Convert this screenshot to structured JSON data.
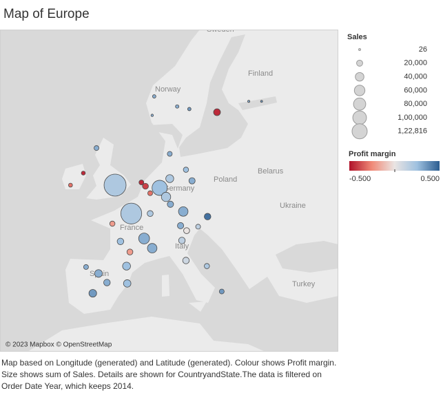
{
  "chart_data": {
    "type": "map",
    "title": "Map of Europe",
    "map_labels": [
      "Sweden",
      "Finland",
      "Norway",
      "Belarus",
      "Poland",
      "Germany",
      "Ukraine",
      "France",
      "Italy",
      "Spain",
      "Turkey"
    ],
    "attribution": "© 2023 Mapbox © OpenStreetMap",
    "caption": "Map based on Longitude (generated) and Latitude (generated). Colour shows  Profit margin. Size shows sum of Sales. Details are shown for CountryandState.The data is filtered on Order Date Year, which keeps 2014.",
    "longitude": [
      -0.2,
      2.2,
      6.4,
      4.1,
      5.3,
      9.9,
      7.35,
      7.9,
      13.5,
      1.5,
      0.6,
      2.0,
      -0.6,
      5.0,
      -2.65,
      -1.4,
      -3.5,
      1.6,
      -4.5,
      9.7,
      10.3,
      15.6,
      10.4,
      3.7,
      4.3,
      5.0,
      14.9,
      -2.95,
      -4.9,
      -6.8,
      11.2,
      7.9,
      9.0,
      10.8,
      5.6,
      10.3,
      13.4,
      8.0,
      12.1,
      9.5,
      19.6,
      21.5,
      5.3
    ],
    "latitude": [
      51.5,
      48.8,
      51.25,
      46.3,
      45.3,
      49.0,
      50.4,
      52.1,
      48.5,
      43.4,
      46.0,
      44.9,
      47.8,
      48.8,
      42.6,
      41.6,
      40.4,
      41.5,
      43.3,
      46.1,
      44.0,
      40.6,
      47.1,
      51.75,
      51.4,
      50.75,
      57.75,
      54.8,
      52.6,
      51.5,
      51.9,
      54.3,
      58.2,
      58.0,
      58.98,
      52.9,
      43.4,
      49.7,
      47.5,
      47.6,
      58.6,
      58.6,
      57.5
    ],
    "sales": [
      122816,
      110000,
      58000,
      30000,
      23000,
      23000,
      22000,
      16000,
      11000,
      16000,
      11000,
      9000,
      7000,
      9000,
      15000,
      11000,
      15000,
      14000,
      6000,
      11000,
      11000,
      6000,
      9000,
      6000,
      9000,
      6000,
      12000,
      6000,
      4000,
      4000,
      10000,
      6000,
      3000,
      3000,
      3000,
      7000,
      7000,
      10000,
      6000,
      10000,
      1200,
      800,
      1500
    ],
    "profit_margin": [
      0.2,
      0.2,
      0.25,
      0.3,
      0.3,
      0.3,
      0.2,
      0.2,
      0.45,
      0.25,
      0.25,
      -0.2,
      -0.2,
      0.2,
      0.3,
      0.3,
      0.35,
      0.25,
      0.3,
      0.15,
      0.1,
      0.35,
      0.0,
      -0.45,
      -0.4,
      -0.3,
      -0.45,
      0.3,
      -0.45,
      -0.3,
      0.3,
      0.3,
      0.3,
      0.35,
      0.3,
      0.25,
      0.2,
      0.3,
      0.15,
      0.3,
      0.3,
      0.35,
      0.3
    ],
    "size_legend": {
      "title": "Sales",
      "items": [
        26,
        {
          "value": 20000,
          "label": "20,000"
        },
        {
          "value": 40000,
          "label": "40,000"
        },
        {
          "value": 60000,
          "label": "60,000"
        },
        {
          "value": 80000,
          "label": "80,000"
        },
        {
          "value": 100000,
          "label": "1,00,000"
        },
        {
          "value": 122816,
          "label": "1,22,816"
        }
      ]
    },
    "color_legend": {
      "title": "Profit margin",
      "range": [
        {
          "value": -0.5,
          "label": "-0.500"
        },
        {
          "value": 0.5,
          "label": "0.500"
        }
      ],
      "colors": [
        "#b0122a",
        "#f08a78",
        "#eae4e2",
        "#9fc1e0",
        "#2c5d90"
      ]
    }
  }
}
